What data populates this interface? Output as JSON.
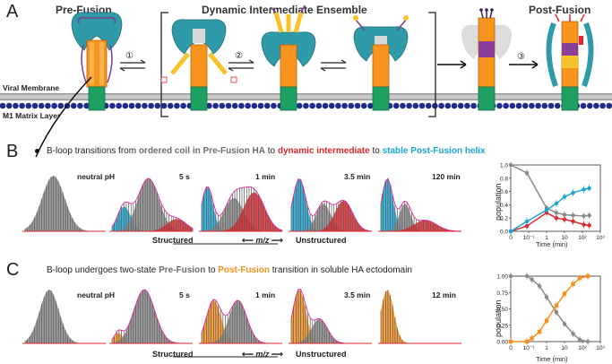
{
  "panelA": {
    "letter": "A",
    "titles": [
      "Pre-Fusion",
      "Dynamic Intermediate Ensemble",
      "Post-Fusion"
    ],
    "steps": [
      "①",
      "②",
      "③"
    ],
    "viral_membrane": "Viral Membrane",
    "m1_layer": "M1 Matrix Layer"
  },
  "panelB": {
    "letter": "B",
    "caption": {
      "p1": "B-loop transitions from ",
      "p2": "ordered coil in Pre-Fusion HA",
      "p3": " to ",
      "p4": "dynamic intermediate",
      "p5": " to ",
      "p6": "stable Post-Fusion helix"
    },
    "spectra_labels": [
      "neutral pH",
      "5 s",
      "1 min",
      "3.5 min",
      "120 min"
    ],
    "axis": {
      "left": "Structured",
      "center": "m/z",
      "right": "Unstructured"
    }
  },
  "panelC": {
    "letter": "C",
    "caption": {
      "p1": "B-loop undergoes two-state ",
      "p2": "Pre-Fusion",
      "p3": " to ",
      "p4": "Post-Fusion",
      "p5": " transition in soluble HA ectodomain"
    },
    "spectra_labels": [
      "neutral pH",
      "5 s",
      "1 min",
      "3.5 min",
      "12 min"
    ],
    "axis": {
      "left": "Structured",
      "center": "m/z",
      "right": "Unstructured"
    }
  },
  "colors": {
    "gray": "#8a8a8a",
    "red": "#e0272f",
    "cyan": "#1ba6d4",
    "orange": "#f5901f",
    "teal": "#2f9aa8",
    "navy": "#1f2a8c"
  },
  "chart_data": [
    {
      "type": "line",
      "panel": "B",
      "xlabel": "Time (min)",
      "ylabel": "population",
      "xscale": "log",
      "xlim": [
        0.01,
        1000
      ],
      "ylim": [
        0,
        1.0
      ],
      "yticks": [
        "0.0",
        "0.2",
        "0.4",
        "0.6",
        "0.8",
        "1.0"
      ],
      "xticks": [
        "0",
        "10⁻¹",
        "1",
        "10",
        "10²",
        "10³"
      ],
      "series": [
        {
          "name": "Pre-Fusion",
          "color": "gray",
          "x": [
            0.01,
            0.08,
            1,
            3.5,
            10,
            30,
            120,
            240
          ],
          "y": [
            1.0,
            0.88,
            0.35,
            0.28,
            0.25,
            0.24,
            0.23,
            0.24
          ]
        },
        {
          "name": "Intermediate",
          "color": "red",
          "x": [
            0.01,
            0.08,
            1,
            3.5,
            10,
            30,
            120,
            240
          ],
          "y": [
            0.0,
            0.08,
            0.28,
            0.2,
            0.18,
            0.15,
            0.1,
            0.09
          ]
        },
        {
          "name": "Post-Fusion",
          "color": "cyan",
          "x": [
            0.01,
            0.08,
            1,
            3.5,
            10,
            30,
            120,
            240
          ],
          "y": [
            0.0,
            0.15,
            0.32,
            0.42,
            0.52,
            0.58,
            0.63,
            0.65
          ]
        }
      ]
    },
    {
      "type": "line",
      "panel": "C",
      "xlabel": "Time (min)",
      "ylabel": "population",
      "xscale": "log",
      "xlim": [
        0.01,
        1000
      ],
      "ylim": [
        0,
        1.0
      ],
      "yticks": [
        "0.00",
        "0.25",
        "0.50",
        "0.75",
        "1.00"
      ],
      "xticks": [
        "0",
        "10⁻¹",
        "1",
        "10",
        "10²",
        "10³"
      ],
      "series": [
        {
          "name": "Pre-Fusion",
          "color": "gray",
          "x": [
            0.01,
            0.08,
            0.15,
            0.4,
            1,
            3.5,
            10,
            30,
            70,
            200
          ],
          "y": [
            1.0,
            1.0,
            0.95,
            0.85,
            0.68,
            0.45,
            0.27,
            0.12,
            0.03,
            0.0
          ]
        },
        {
          "name": "Post-Fusion",
          "color": "orange",
          "x": [
            0.01,
            0.08,
            0.15,
            0.4,
            1,
            3.5,
            10,
            30,
            70,
            200
          ],
          "y": [
            0.0,
            0.0,
            0.05,
            0.15,
            0.32,
            0.55,
            0.73,
            0.88,
            0.97,
            1.0
          ]
        }
      ]
    }
  ]
}
